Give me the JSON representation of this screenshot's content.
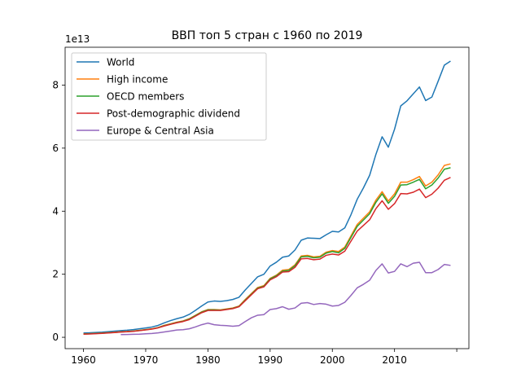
{
  "chart_data": {
    "type": "line",
    "title": "ВВП топ 5 стран с 1960 по 2019",
    "y_offset_label": "1e13",
    "x": [
      1960,
      1961,
      1962,
      1963,
      1964,
      1965,
      1966,
      1967,
      1968,
      1969,
      1970,
      1971,
      1972,
      1973,
      1974,
      1975,
      1976,
      1977,
      1978,
      1979,
      1980,
      1981,
      1982,
      1983,
      1984,
      1985,
      1986,
      1987,
      1988,
      1989,
      1990,
      1991,
      1992,
      1993,
      1994,
      1995,
      1996,
      1997,
      1998,
      1999,
      2000,
      2001,
      2002,
      2003,
      2004,
      2005,
      2006,
      2007,
      2008,
      2009,
      2010,
      2011,
      2012,
      2013,
      2014,
      2015,
      2016,
      2017,
      2018,
      2019
    ],
    "series": [
      {
        "name": "World",
        "color": "#1f77b4",
        "values": [
          0.138,
          0.143,
          0.153,
          0.164,
          0.18,
          0.196,
          0.213,
          0.226,
          0.244,
          0.269,
          0.296,
          0.326,
          0.377,
          0.459,
          0.53,
          0.59,
          0.641,
          0.726,
          0.854,
          0.992,
          1.12,
          1.15,
          1.14,
          1.16,
          1.2,
          1.27,
          1.5,
          1.71,
          1.92,
          2.0,
          2.26,
          2.38,
          2.54,
          2.58,
          2.77,
          3.08,
          3.15,
          3.14,
          3.13,
          3.25,
          3.36,
          3.34,
          3.47,
          3.89,
          4.38,
          4.74,
          5.14,
          5.8,
          6.36,
          6.03,
          6.6,
          7.34,
          7.5,
          7.72,
          7.94,
          7.51,
          7.62,
          8.12,
          8.63,
          8.76
        ]
      },
      {
        "name": "High income",
        "color": "#ff7f0e",
        "values": [
          0.11,
          0.115,
          0.125,
          0.135,
          0.148,
          0.16,
          0.175,
          0.185,
          0.2,
          0.22,
          0.245,
          0.27,
          0.31,
          0.38,
          0.43,
          0.48,
          0.52,
          0.59,
          0.7,
          0.81,
          0.88,
          0.88,
          0.87,
          0.9,
          0.93,
          0.99,
          1.2,
          1.39,
          1.58,
          1.64,
          1.87,
          1.97,
          2.13,
          2.15,
          2.3,
          2.58,
          2.6,
          2.55,
          2.57,
          2.7,
          2.75,
          2.72,
          2.86,
          3.22,
          3.58,
          3.78,
          3.98,
          4.35,
          4.62,
          4.32,
          4.55,
          4.92,
          4.92,
          5.0,
          5.1,
          4.8,
          4.92,
          5.15,
          5.45,
          5.5
        ]
      },
      {
        "name": "OECD members",
        "color": "#2ca02c",
        "values": [
          0.105,
          0.11,
          0.12,
          0.13,
          0.143,
          0.155,
          0.17,
          0.18,
          0.195,
          0.215,
          0.24,
          0.265,
          0.305,
          0.37,
          0.42,
          0.47,
          0.51,
          0.58,
          0.69,
          0.8,
          0.87,
          0.87,
          0.86,
          0.89,
          0.92,
          0.98,
          1.18,
          1.37,
          1.56,
          1.62,
          1.85,
          1.95,
          2.1,
          2.12,
          2.27,
          2.55,
          2.57,
          2.52,
          2.54,
          2.67,
          2.72,
          2.68,
          2.82,
          3.17,
          3.52,
          3.72,
          3.92,
          4.28,
          4.55,
          4.25,
          4.47,
          4.83,
          4.84,
          4.92,
          5.01,
          4.71,
          4.83,
          5.05,
          5.33,
          5.38
        ]
      },
      {
        "name": "Post-demographic dividend",
        "color": "#d62728",
        "values": [
          0.1,
          0.105,
          0.115,
          0.125,
          0.138,
          0.15,
          0.165,
          0.175,
          0.19,
          0.21,
          0.235,
          0.26,
          0.3,
          0.36,
          0.41,
          0.46,
          0.5,
          0.56,
          0.67,
          0.78,
          0.85,
          0.85,
          0.85,
          0.88,
          0.91,
          0.97,
          1.16,
          1.35,
          1.54,
          1.6,
          1.82,
          1.92,
          2.07,
          2.08,
          2.22,
          2.49,
          2.5,
          2.46,
          2.48,
          2.6,
          2.64,
          2.61,
          2.73,
          3.05,
          3.37,
          3.55,
          3.73,
          4.08,
          4.33,
          4.06,
          4.24,
          4.56,
          4.55,
          4.6,
          4.7,
          4.43,
          4.54,
          4.73,
          4.98,
          5.07
        ]
      },
      {
        "name": "Europe & Central Asia",
        "color": "#9467bd",
        "values": [
          null,
          null,
          null,
          null,
          null,
          null,
          0.085,
          0.09,
          0.095,
          0.1,
          0.11,
          0.12,
          0.14,
          0.17,
          0.2,
          0.23,
          0.24,
          0.27,
          0.33,
          0.4,
          0.45,
          0.4,
          0.38,
          0.37,
          0.35,
          0.37,
          0.5,
          0.62,
          0.7,
          0.72,
          0.88,
          0.91,
          0.97,
          0.89,
          0.93,
          1.08,
          1.1,
          1.04,
          1.07,
          1.05,
          0.99,
          1.01,
          1.11,
          1.33,
          1.57,
          1.68,
          1.81,
          2.12,
          2.33,
          2.04,
          2.09,
          2.33,
          2.24,
          2.35,
          2.38,
          2.05,
          2.05,
          2.15,
          2.31,
          2.28
        ]
      }
    ],
    "xlim": [
      1957.05,
      2021.95
    ],
    "ylim": [
      -0.36,
      9.2
    ],
    "xticks": [
      1960,
      1970,
      1980,
      1990,
      2000,
      2010,
      {
        "value": 2020,
        "label": null
      }
    ],
    "yticks": [
      0,
      2,
      4,
      6,
      8
    ],
    "legend": "upper-left",
    "grid": false
  }
}
